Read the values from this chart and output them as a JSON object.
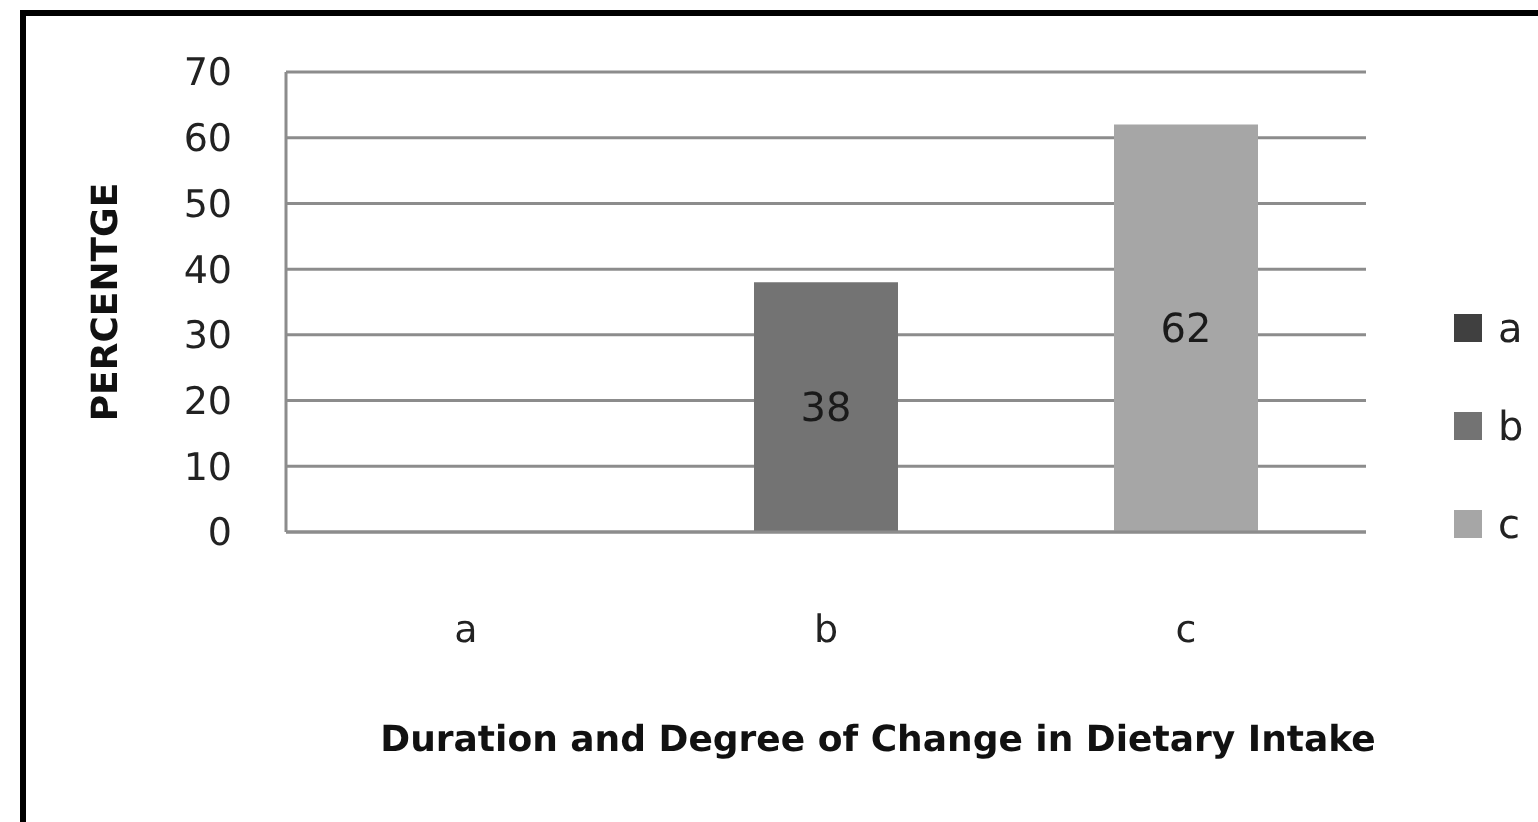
{
  "chart_data": {
    "type": "bar",
    "xlabel": "Duration and Degree of Change in Dietary Intake",
    "ylabel": "PERCENTGE",
    "categories": [
      "a",
      "b",
      "c"
    ],
    "stacked": true,
    "series": [
      {
        "name": "a",
        "color": "#404040",
        "values": [
          0,
          null,
          null
        ]
      },
      {
        "name": "b",
        "color": "#737373",
        "values": [
          null,
          38,
          null
        ],
        "value_labels": [
          null,
          "38",
          null
        ]
      },
      {
        "name": "c",
        "color": "#a6a6a6",
        "values": [
          null,
          null,
          62
        ],
        "value_labels": [
          null,
          null,
          "62"
        ]
      }
    ],
    "ylim": [
      0,
      70
    ],
    "yticks": [
      0,
      10,
      20,
      30,
      40,
      50,
      60,
      70
    ],
    "grid": "y",
    "legend": "right"
  }
}
